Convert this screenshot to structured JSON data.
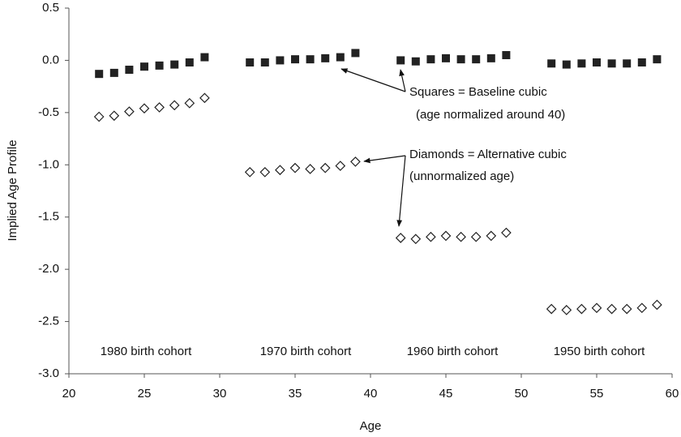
{
  "chart_data": {
    "type": "scatter",
    "x_label": "Age",
    "y_label": "Implied Age Profile",
    "x": [
      22,
      23,
      24,
      25,
      26,
      27,
      28,
      29,
      32,
      33,
      34,
      35,
      36,
      37,
      38,
      39,
      42,
      43,
      44,
      45,
      46,
      47,
      48,
      49,
      52,
      53,
      54,
      55,
      56,
      57,
      58,
      59
    ],
    "series": [
      {
        "marker": "square",
        "color": "#222222",
        "values": [
          -0.13,
          -0.12,
          -0.09,
          -0.06,
          -0.05,
          -0.04,
          -0.02,
          0.03,
          -0.02,
          -0.02,
          0.0,
          0.01,
          0.01,
          0.02,
          0.03,
          0.07,
          0.0,
          -0.01,
          0.01,
          0.02,
          0.01,
          0.01,
          0.02,
          0.05,
          -0.03,
          -0.04,
          -0.03,
          -0.02,
          -0.03,
          -0.03,
          -0.02,
          0.01
        ]
      },
      {
        "marker": "diamond",
        "color": "#222222",
        "values": [
          -0.54,
          -0.53,
          -0.49,
          -0.46,
          -0.45,
          -0.43,
          -0.41,
          -0.36,
          -1.07,
          -1.07,
          -1.05,
          -1.03,
          -1.04,
          -1.03,
          -1.01,
          -0.97,
          -1.7,
          -1.71,
          -1.69,
          -1.68,
          -1.69,
          -1.69,
          -1.68,
          -1.65,
          -2.38,
          -2.39,
          -2.38,
          -2.37,
          -2.38,
          -2.38,
          -2.37,
          -2.34
        ]
      }
    ],
    "xlim": [
      20,
      60
    ],
    "xticks": [
      20,
      25,
      30,
      35,
      40,
      45,
      50,
      55,
      60
    ],
    "ylim": [
      -3.0,
      0.5
    ],
    "yticks": [
      0.5,
      {
        "value": 0,
        "label": "0.0"
      },
      -0.5,
      {
        "value": -1,
        "label": "-1.0"
      },
      -1.5,
      {
        "value": -2,
        "label": "-2.0"
      },
      -2.5,
      {
        "value": -3,
        "label": "-3.0"
      }
    ],
    "grid": false,
    "cohort_labels": [
      "1980 birth cohort",
      "1970 birth cohort",
      "1960 birth cohort",
      "1950 birth cohort"
    ],
    "annotations": [
      "Squares = Baseline cubic",
      "(age normalized around 40)",
      "Diamonds = Alternative cubic",
      "(unnormalized age)"
    ]
  }
}
